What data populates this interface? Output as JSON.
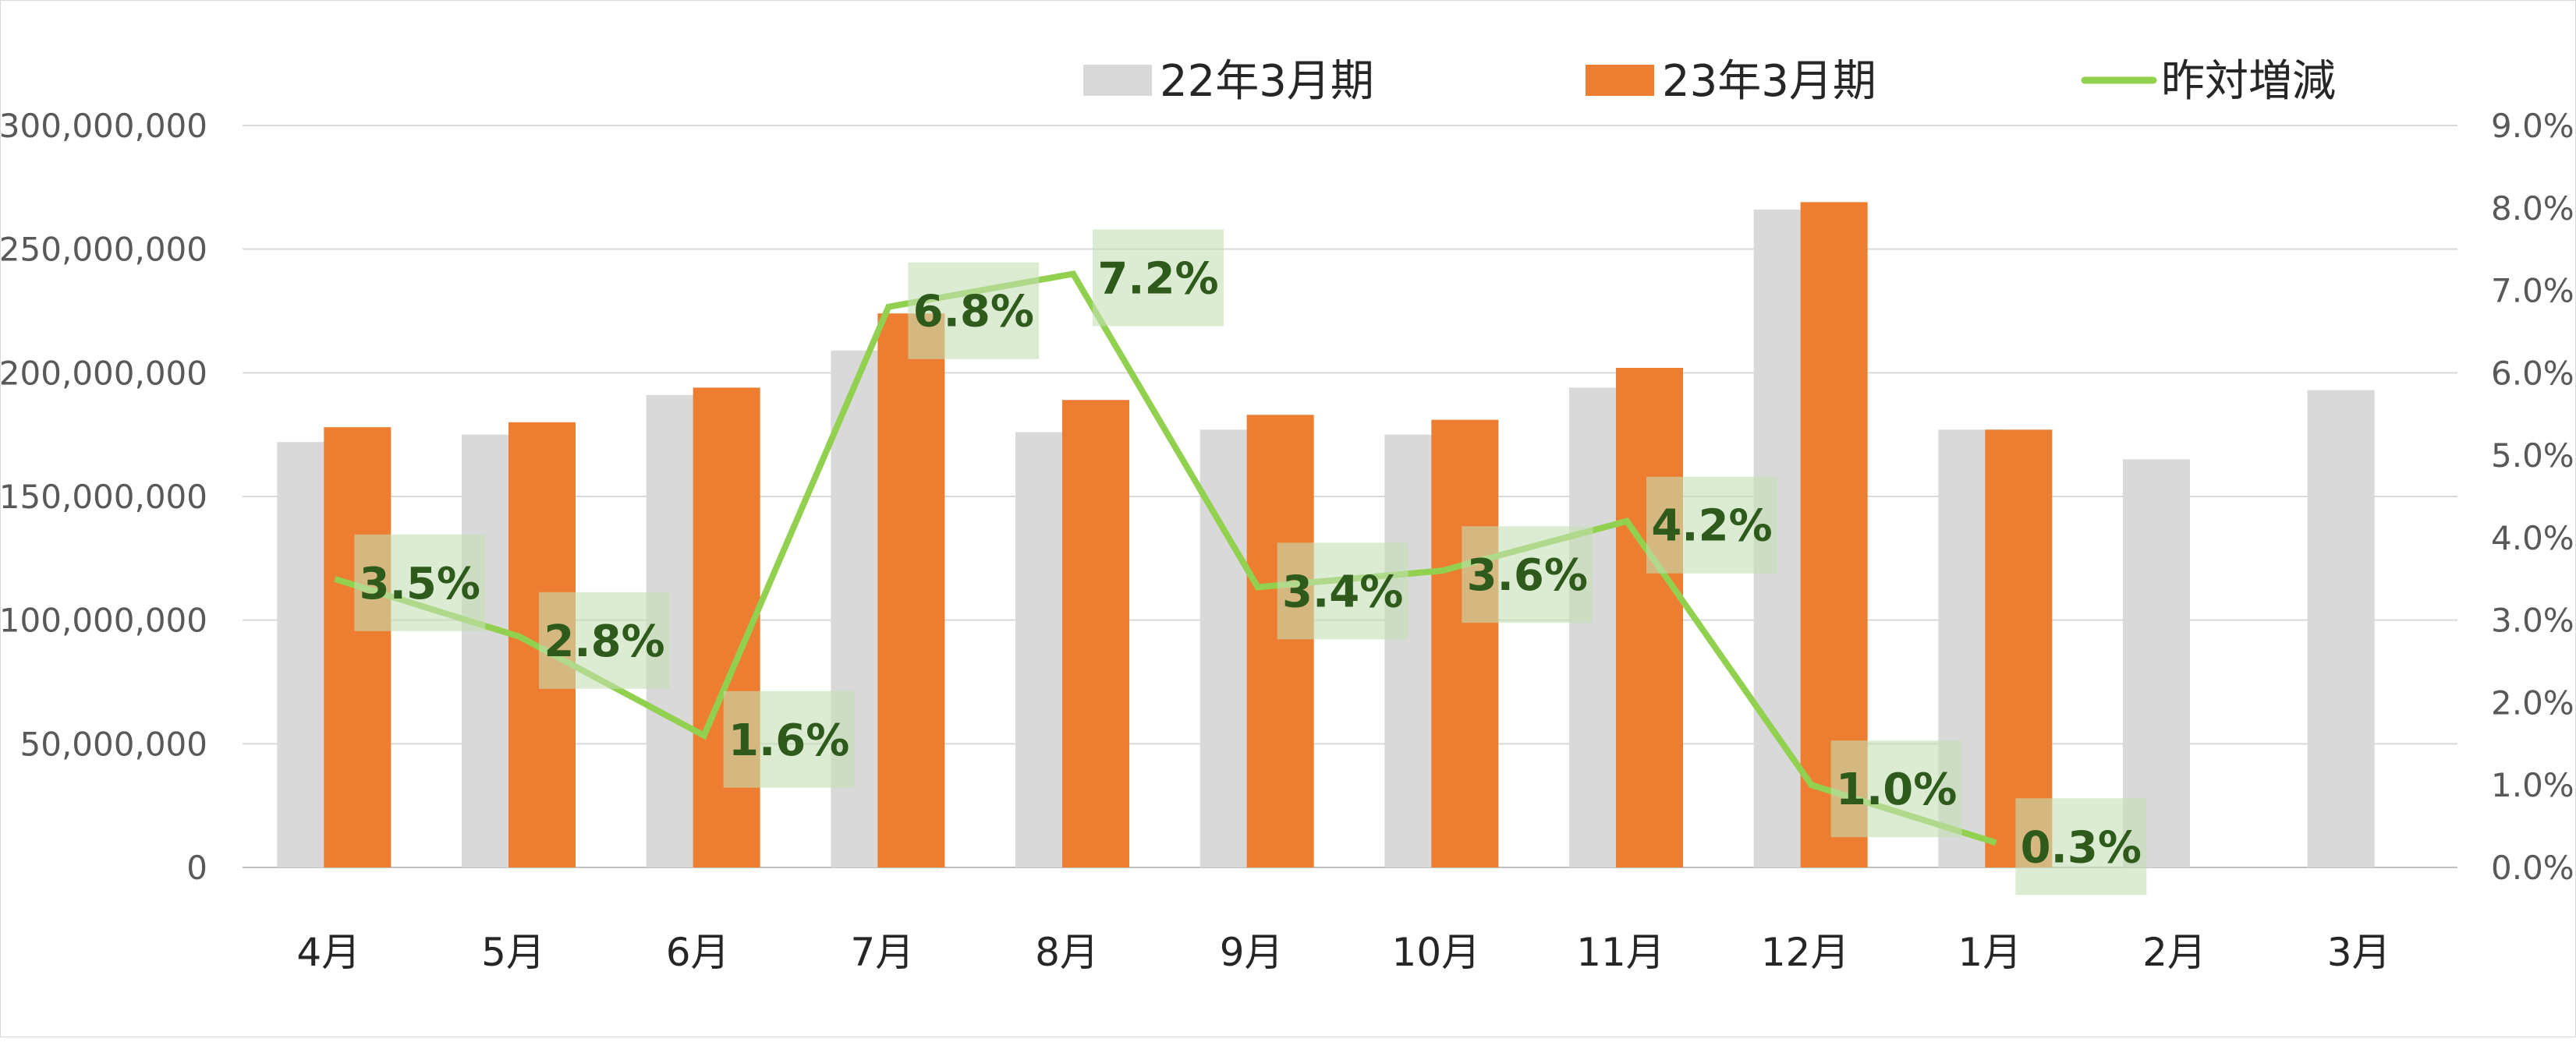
{
  "colors": {
    "series_prev": "#d9d9d9",
    "series_curr": "#ed7d31",
    "series_change": "#92d050",
    "gridline": "#d9d9d9",
    "label_box": "#c5e0b4"
  },
  "legend": [
    {
      "label": "22年3月期",
      "marker": "box",
      "color": "#d9d9d9"
    },
    {
      "label": "23年3月期",
      "marker": "box",
      "color": "#ed7d31"
    },
    {
      "label": "昨対増減",
      "marker": "line",
      "color": "#92d050"
    }
  ],
  "chart_data": {
    "type": "bar",
    "combo": "bar+line",
    "categories": [
      "4月",
      "5月",
      "6月",
      "7月",
      "8月",
      "9月",
      "10月",
      "11月",
      "12月",
      "1月",
      "2月",
      "3月"
    ],
    "series": [
      {
        "name": "22年3月期",
        "type": "bar",
        "axis": "left",
        "values": [
          172000000,
          175000000,
          191000000,
          209000000,
          176000000,
          177000000,
          175000000,
          194000000,
          266000000,
          177000000,
          165000000,
          193000000
        ]
      },
      {
        "name": "23年3月期",
        "type": "bar",
        "axis": "left",
        "values": [
          178000000,
          180000000,
          194000000,
          224000000,
          189000000,
          183000000,
          181000000,
          202000000,
          269000000,
          177000000,
          null,
          null
        ]
      },
      {
        "name": "昨対増減",
        "type": "line",
        "axis": "right",
        "values": [
          0.035,
          0.028,
          0.016,
          0.068,
          0.072,
          0.034,
          0.036,
          0.042,
          0.01,
          0.003,
          null,
          null
        ],
        "data_labels": [
          "3.5%",
          "2.8%",
          "1.6%",
          "6.8%",
          "7.2%",
          "3.4%",
          "3.6%",
          "4.2%",
          "1.0%",
          "0.3%",
          "",
          ""
        ]
      }
    ],
    "y_left": {
      "min": 0,
      "max": 300000000,
      "ticks": [
        "0",
        "50,000,000",
        "100,000,000",
        "150,000,000",
        "200,000,000",
        "250,000,000",
        "300,000,000"
      ]
    },
    "y_right": {
      "min": 0,
      "max": 0.09,
      "ticks": [
        "0.0%",
        "1.0%",
        "2.0%",
        "3.0%",
        "4.0%",
        "5.0%",
        "6.0%",
        "7.0%",
        "8.0%",
        "9.0%"
      ]
    },
    "grid": true,
    "legend_position": "top-right"
  }
}
